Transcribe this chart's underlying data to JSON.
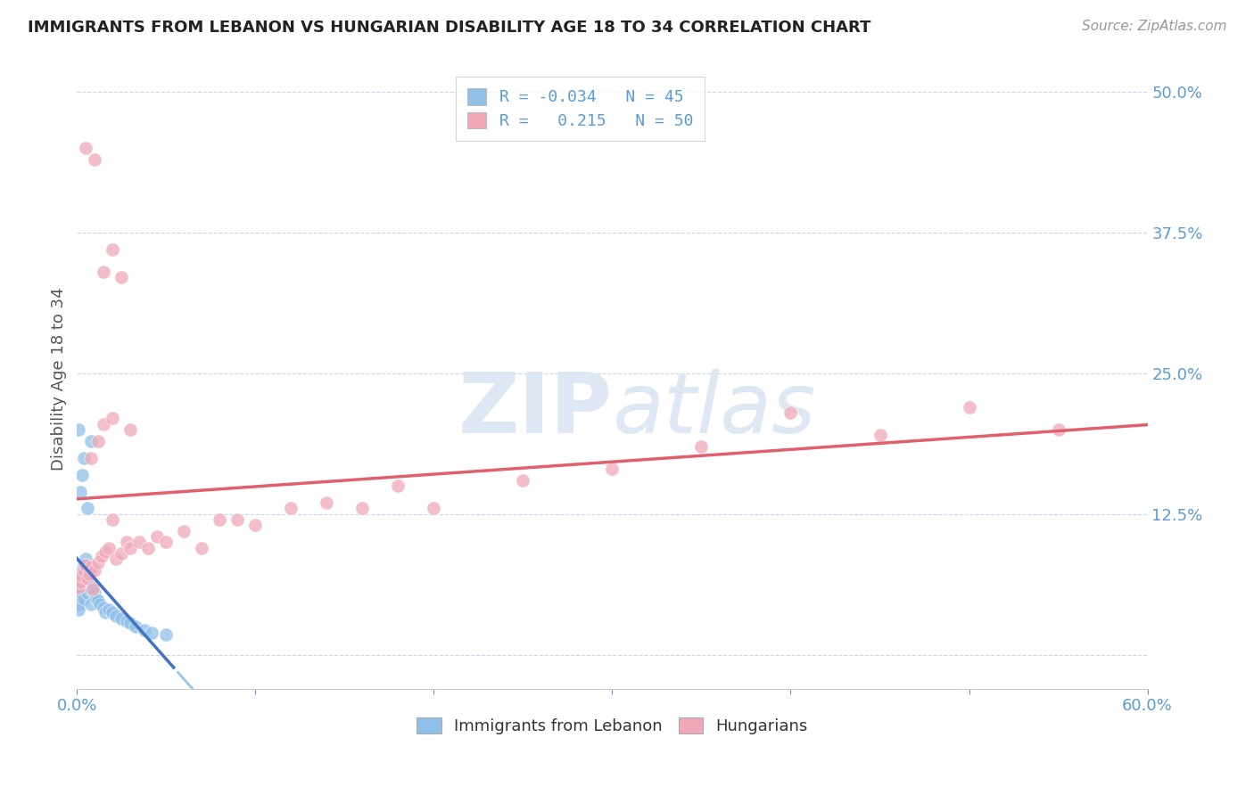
{
  "title": "IMMIGRANTS FROM LEBANON VS HUNGARIAN DISABILITY AGE 18 TO 34 CORRELATION CHART",
  "source": "Source: ZipAtlas.com",
  "ylabel": "Disability Age 18 to 34",
  "xlim": [
    0.0,
    0.6
  ],
  "ylim": [
    -0.03,
    0.52
  ],
  "color_blue": "#8fc0e8",
  "color_pink": "#f0a8b8",
  "color_line_blue_solid": "#4472c4",
  "color_line_blue_dash": "#9dc3e6",
  "color_line_pink": "#e06070",
  "background": "#ffffff",
  "watermark_color": "#dde8f4",
  "grid_color": "#c8d8ec",
  "tick_color": "#5b9bd5",
  "leb_x": [
    0.001,
    0.001,
    0.001,
    0.001,
    0.001,
    0.002,
    0.002,
    0.002,
    0.002,
    0.003,
    0.003,
    0.003,
    0.004,
    0.004,
    0.005,
    0.005,
    0.005,
    0.006,
    0.006,
    0.007,
    0.008,
    0.008,
    0.009,
    0.01,
    0.011,
    0.012,
    0.013,
    0.015,
    0.016,
    0.018,
    0.02,
    0.022,
    0.025,
    0.028,
    0.03,
    0.033,
    0.038,
    0.042,
    0.05,
    0.002,
    0.003,
    0.004,
    0.006,
    0.008,
    0.001
  ],
  "leb_y": [
    0.06,
    0.055,
    0.05,
    0.045,
    0.04,
    0.07,
    0.065,
    0.06,
    0.055,
    0.075,
    0.068,
    0.058,
    0.08,
    0.05,
    0.085,
    0.072,
    0.06,
    0.068,
    0.055,
    0.065,
    0.058,
    0.045,
    0.06,
    0.055,
    0.05,
    0.048,
    0.045,
    0.042,
    0.038,
    0.04,
    0.038,
    0.035,
    0.032,
    0.03,
    0.028,
    0.025,
    0.022,
    0.02,
    0.018,
    0.145,
    0.16,
    0.175,
    0.13,
    0.19,
    0.2
  ],
  "hun_x": [
    0.001,
    0.002,
    0.003,
    0.004,
    0.005,
    0.006,
    0.007,
    0.008,
    0.009,
    0.01,
    0.012,
    0.014,
    0.016,
    0.018,
    0.02,
    0.022,
    0.025,
    0.028,
    0.03,
    0.035,
    0.04,
    0.045,
    0.05,
    0.06,
    0.07,
    0.08,
    0.09,
    0.1,
    0.12,
    0.14,
    0.16,
    0.18,
    0.2,
    0.25,
    0.3,
    0.35,
    0.4,
    0.45,
    0.5,
    0.55,
    0.008,
    0.012,
    0.015,
    0.02,
    0.03,
    0.015,
    0.02,
    0.025,
    0.01,
    0.005
  ],
  "hun_y": [
    0.06,
    0.065,
    0.07,
    0.075,
    0.08,
    0.068,
    0.072,
    0.078,
    0.058,
    0.075,
    0.082,
    0.088,
    0.092,
    0.095,
    0.12,
    0.085,
    0.09,
    0.1,
    0.095,
    0.1,
    0.095,
    0.105,
    0.1,
    0.11,
    0.095,
    0.12,
    0.12,
    0.115,
    0.13,
    0.135,
    0.13,
    0.15,
    0.13,
    0.155,
    0.165,
    0.185,
    0.215,
    0.195,
    0.22,
    0.2,
    0.175,
    0.19,
    0.205,
    0.21,
    0.2,
    0.34,
    0.36,
    0.335,
    0.44,
    0.45
  ]
}
